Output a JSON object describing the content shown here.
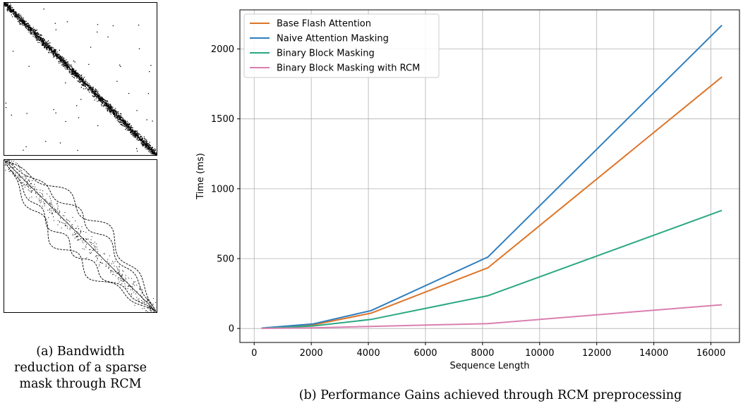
{
  "panel_a": {
    "caption": "(a) Bandwidth reduction of a sparse mask through RCM",
    "caption_lines": [
      "(a) Bandwidth",
      "reduction of a sparse",
      "mask through RCM"
    ]
  },
  "panel_b": {
    "caption": "(b) Performance Gains achieved through RCM preprocessing"
  },
  "chart_data": {
    "type": "line",
    "title": "",
    "xlabel": "Sequence Length",
    "ylabel": "Time (ms)",
    "xlim": [
      -500,
      17000
    ],
    "ylim": [
      -100,
      2280
    ],
    "x_ticks": [
      0,
      2000,
      4000,
      6000,
      8000,
      10000,
      12000,
      14000,
      16000
    ],
    "y_ticks": [
      0,
      500,
      1000,
      1500,
      2000
    ],
    "grid": true,
    "legend_position": "top-left",
    "x": [
      256,
      2048,
      4096,
      8192,
      16384
    ],
    "series": [
      {
        "name": "Base Flash Attention",
        "color": "#dd7428",
        "values": [
          2,
          25,
          110,
          435,
          1800
        ]
      },
      {
        "name": "Naive Attention Masking",
        "color": "#2e7ebf",
        "values": [
          3,
          32,
          128,
          512,
          2170
        ]
      },
      {
        "name": "Binary Block Masking",
        "color": "#2aa883",
        "values": [
          1,
          18,
          65,
          235,
          845
        ]
      },
      {
        "name": "Binary Block Masking with RCM",
        "color": "#d97fb0",
        "values": [
          1,
          5,
          15,
          35,
          170
        ]
      }
    ]
  }
}
